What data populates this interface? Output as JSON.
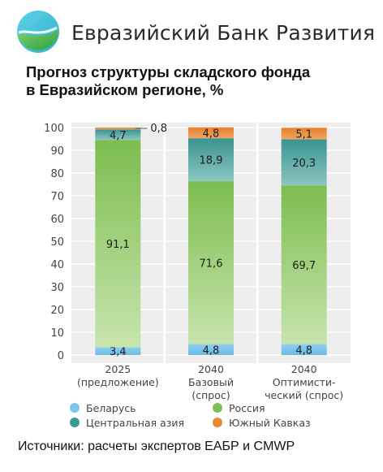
{
  "brand": {
    "name": "Евразийский Банк Развития",
    "logo_icon": "eadb-logo-icon",
    "colors": {
      "logo_top": "#4ec9e0",
      "logo_bottom": "#3bb54a"
    }
  },
  "title_line1": "Прогноз структуры складского фонда",
  "title_line2": "в Евразийском регионе, %",
  "source": "Источники: расчеты экспертов ЕАБР и CMWP",
  "chart_data": {
    "type": "bar",
    "stacked": true,
    "ylim": [
      0,
      100
    ],
    "yticks": [
      0,
      10,
      20,
      30,
      40,
      50,
      60,
      70,
      80,
      90,
      100
    ],
    "grid": true,
    "legend_position": "bottom",
    "categories": [
      [
        "2025",
        "(предложение)"
      ],
      [
        "2040",
        "Базовый",
        "(спрос)"
      ],
      [
        "2040",
        "Оптимисти-",
        "ческий (спрос)"
      ]
    ],
    "series": [
      {
        "name": "Беларусь",
        "color": "#7cc6ea",
        "values": [
          3.4,
          4.8,
          4.8
        ]
      },
      {
        "name": "Россия",
        "color": "#7dbf55",
        "values": [
          91.1,
          71.6,
          69.7
        ]
      },
      {
        "name": "Центральная азия",
        "color": "#3d9b95",
        "values": [
          4.7,
          18.9,
          20.3
        ]
      },
      {
        "name": "Южный Кавказ",
        "color": "#e98936",
        "values": [
          0.8,
          4.8,
          5.1
        ]
      }
    ],
    "data_labels": [
      [
        "3,4",
        "91,1",
        "4,7",
        "0,8"
      ],
      [
        "4,8",
        "71,6",
        "18,9",
        "4,8"
      ],
      [
        "4,8",
        "69,7",
        "20,3",
        "5,1"
      ]
    ],
    "legend_order": [
      "Беларусь",
      "Россия",
      "Центральная азия",
      "Южный Кавказ"
    ]
  }
}
